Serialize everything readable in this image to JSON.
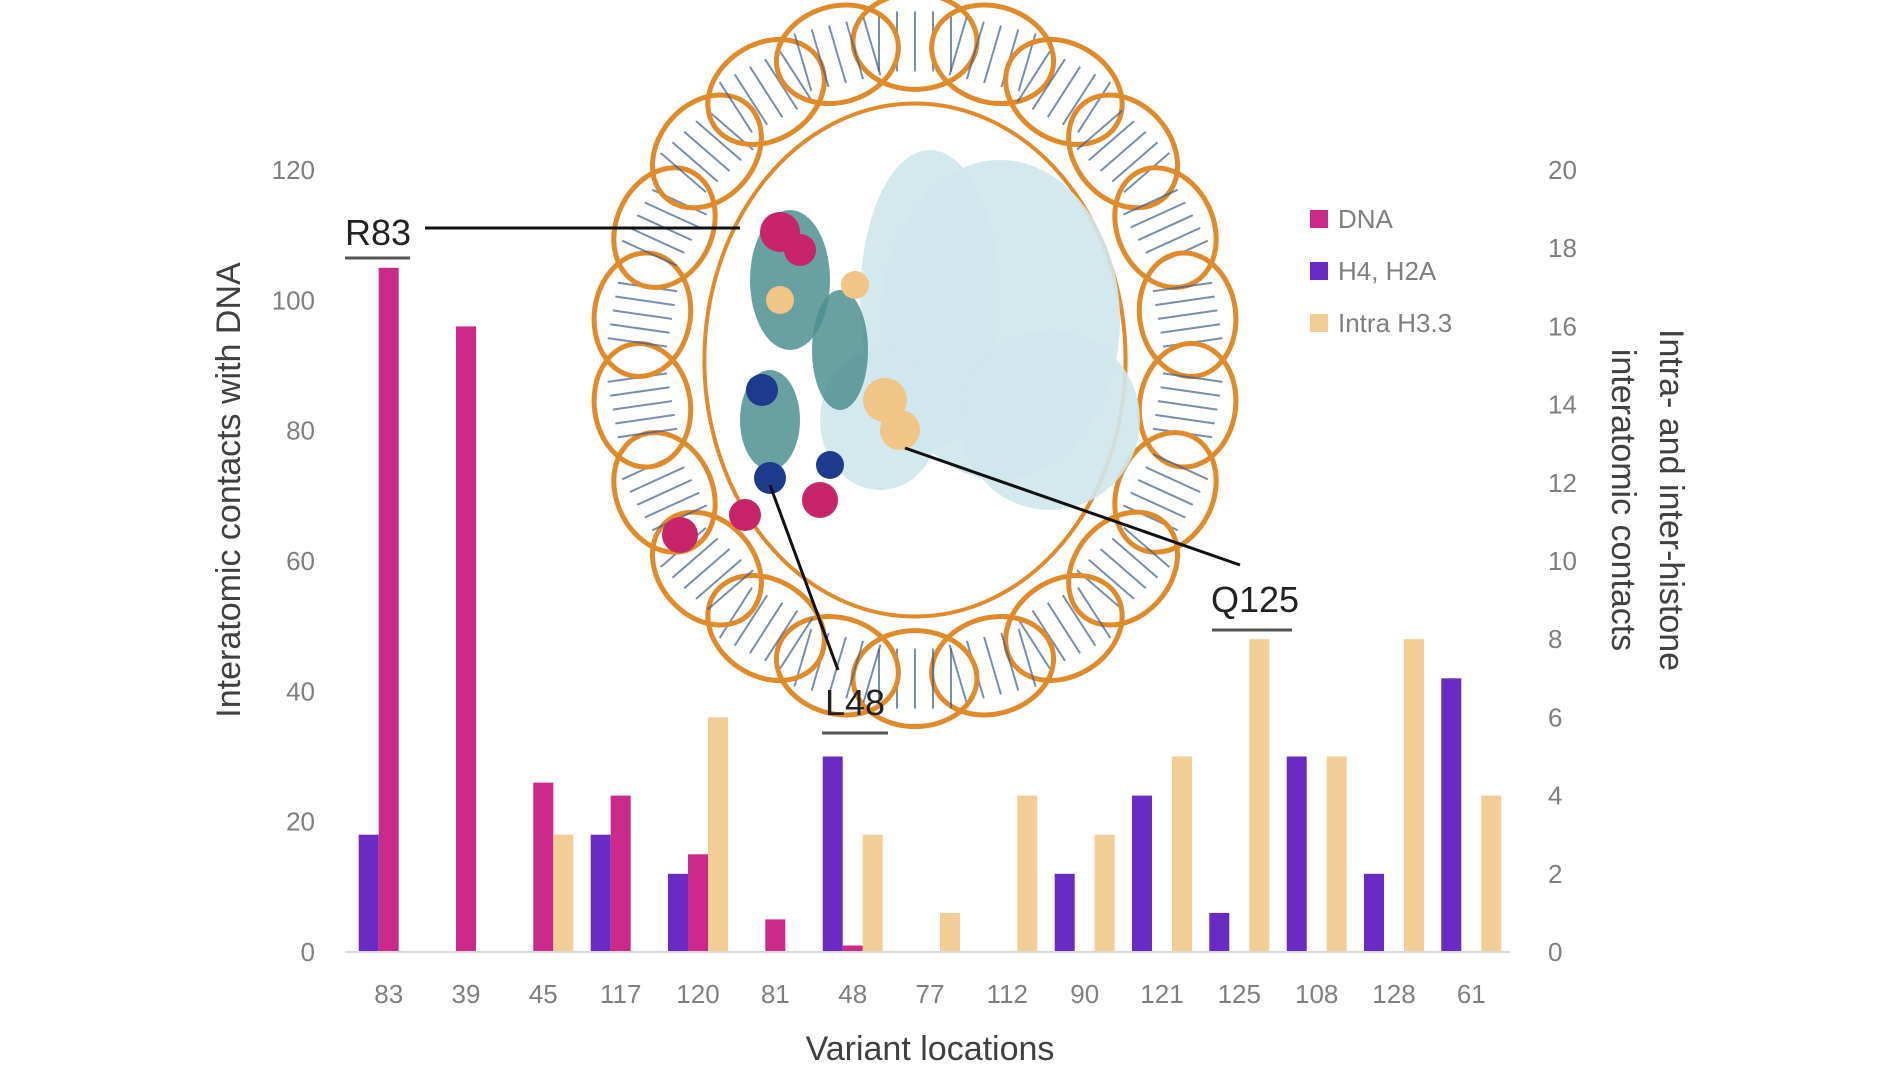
{
  "chart_data": {
    "type": "bar",
    "categories": [
      "83",
      "39",
      "45",
      "117",
      "120",
      "81",
      "48",
      "77",
      "112",
      "90",
      "121",
      "125",
      "108",
      "128",
      "61"
    ],
    "xlabel": "Variant locations",
    "ylabel_left": "Interatomic contacts with DNA",
    "ylabel_right_line1": "Intra- and inter-histone",
    "ylabel_right_line2": "interatomic contacts",
    "ylim_left": [
      0,
      120
    ],
    "ylim_right": [
      0,
      20
    ],
    "yticks_left": [
      "0",
      "20",
      "40",
      "60",
      "80",
      "100",
      "120"
    ],
    "yticks_right": [
      "0",
      "2",
      "4",
      "6",
      "8",
      "10",
      "12",
      "14",
      "16",
      "18",
      "20"
    ],
    "grid": false,
    "legend_position": "right",
    "series": [
      {
        "name": "H4, H2A",
        "axis": "right",
        "color": "#6a2bc4",
        "values": [
          3,
          0,
          0,
          3,
          2,
          0,
          5,
          0,
          0,
          2,
          4,
          1,
          5,
          2,
          7
        ]
      },
      {
        "name": "DNA",
        "axis": "left",
        "color": "#cc2a8a",
        "values": [
          105,
          96,
          26,
          24,
          15,
          5,
          1,
          0,
          0,
          0,
          0,
          0,
          0,
          0,
          0
        ]
      },
      {
        "name": "Intra H3.3",
        "axis": "right",
        "color": "#f2cd96",
        "values": [
          0,
          0,
          3,
          0,
          6,
          0,
          3,
          1,
          4,
          3,
          5,
          8,
          5,
          8,
          4
        ]
      }
    ],
    "legend_order": [
      "DNA",
      "H4, H2A",
      "Intra H3.3"
    ],
    "annotations": [
      "R83",
      "L48",
      "Q125"
    ]
  },
  "colors": {
    "dna_orange": "#e08a2a",
    "dna_base": "#3e5f8c",
    "histone_light": "#cfe7ec",
    "histone_teal": "#4f8f91",
    "sphere_pink": "#c8246a",
    "sphere_blue": "#1d3a8c",
    "sphere_tan": "#f0c585"
  },
  "figure": {
    "inset_image": "nucleosome-structure-rendering"
  }
}
